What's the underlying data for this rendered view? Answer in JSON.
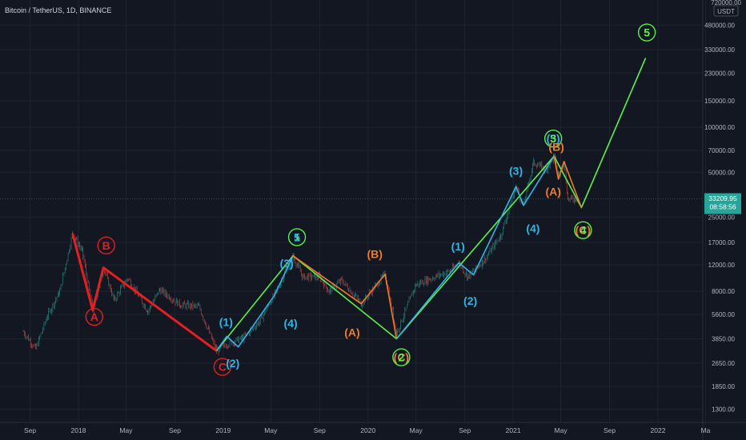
{
  "header": {
    "symbol_line": "Bitcoin / TetherUS, 1D, BINANCE"
  },
  "axis": {
    "top_label": "720000.00",
    "currency": "USDT",
    "price_badge": "33209.95",
    "countdown": "08:58:56"
  },
  "colors": {
    "background": "#131722",
    "grid": "#1f2330",
    "candle_up": "#26a69a",
    "candle_down": "#ef5350",
    "red": "#e32020",
    "green": "#5ef04a",
    "cyan": "#2fb5e8",
    "orange": "#f07a2a",
    "price_badge": "#26a69a"
  },
  "chart_data": {
    "type": "line",
    "symbol": "Bitcoin / TetherUS",
    "timeframe": "1D",
    "exchange": "BINANCE",
    "y_scale": "log",
    "ylim": [
      1000,
      720000
    ],
    "y_ticks": [
      "1300.00",
      "1850.00",
      "2650.00",
      "3850.00",
      "5600.00",
      "8000.00",
      "12000.00",
      "17000.00",
      "25000.00",
      "33209.95",
      "50000.00",
      "70000.00",
      "100000.00",
      "150000.00",
      "230000.00",
      "330000.00",
      "480000.00",
      "720000.00"
    ],
    "x_ticks": [
      "Sep",
      "2018",
      "May",
      "Sep",
      "2019",
      "May",
      "Sep",
      "2020",
      "May",
      "Sep",
      "2021",
      "May",
      "Sep",
      "2022",
      "Ma"
    ],
    "last_price": 33209.95,
    "price_path": [
      {
        "x": "2017-08-15",
        "y": 4300
      },
      {
        "x": "2017-09-15",
        "y": 3300
      },
      {
        "x": "2017-10-15",
        "y": 5500
      },
      {
        "x": "2017-11-15",
        "y": 8000
      },
      {
        "x": "2017-12-17",
        "y": 19500
      },
      {
        "x": "2018-01-10",
        "y": 15000
      },
      {
        "x": "2018-02-06",
        "y": 6000
      },
      {
        "x": "2018-03-05",
        "y": 11500
      },
      {
        "x": "2018-04-01",
        "y": 7000
      },
      {
        "x": "2018-05-05",
        "y": 9800
      },
      {
        "x": "2018-06-25",
        "y": 5900
      },
      {
        "x": "2018-07-25",
        "y": 8200
      },
      {
        "x": "2018-09-15",
        "y": 6500
      },
      {
        "x": "2018-11-01",
        "y": 6300
      },
      {
        "x": "2018-12-15",
        "y": 3200
      },
      {
        "x": "2019-01-15",
        "y": 3600
      },
      {
        "x": "2019-02-20",
        "y": 3900
      },
      {
        "x": "2019-04-02",
        "y": 5000
      },
      {
        "x": "2019-05-15",
        "y": 8000
      },
      {
        "x": "2019-06-26",
        "y": 13800
      },
      {
        "x": "2019-07-20",
        "y": 10000
      },
      {
        "x": "2019-09-01",
        "y": 10000
      },
      {
        "x": "2019-09-25",
        "y": 8000
      },
      {
        "x": "2019-10-26",
        "y": 9500
      },
      {
        "x": "2019-12-15",
        "y": 6600
      },
      {
        "x": "2020-02-13",
        "y": 10400
      },
      {
        "x": "2020-03-13",
        "y": 4200
      },
      {
        "x": "2020-04-30",
        "y": 8800
      },
      {
        "x": "2020-06-01",
        "y": 9600
      },
      {
        "x": "2020-07-27",
        "y": 11000
      },
      {
        "x": "2020-08-17",
        "y": 12400
      },
      {
        "x": "2020-09-08",
        "y": 10000
      },
      {
        "x": "2020-10-21",
        "y": 13000
      },
      {
        "x": "2020-12-01",
        "y": 19000
      },
      {
        "x": "2021-01-08",
        "y": 40000
      },
      {
        "x": "2021-01-27",
        "y": 30000
      },
      {
        "x": "2021-02-21",
        "y": 58000
      },
      {
        "x": "2021-03-25",
        "y": 52000
      },
      {
        "x": "2021-04-14",
        "y": 64000
      },
      {
        "x": "2021-04-25",
        "y": 47000
      },
      {
        "x": "2021-05-09",
        "y": 59000
      },
      {
        "x": "2021-05-19",
        "y": 33000
      },
      {
        "x": "2021-06-10",
        "y": 33209.95
      }
    ],
    "series": [
      {
        "name": "",
        "color": "red",
        "points": [
          {
            "x": "2017-12-17",
            "y": 19500
          },
          {
            "x": "2018-02-06",
            "y": 6000
          },
          {
            "x": "2018-03-05",
            "y": 11500
          },
          {
            "x": "2018-12-15",
            "y": 3200
          }
        ]
      },
      {
        "name": "",
        "color": "green",
        "points": [
          {
            "x": "2018-12-15",
            "y": 3200
          },
          {
            "x": "2019-06-26",
            "y": 13800
          },
          {
            "x": "2020-03-13",
            "y": 3850
          },
          {
            "x": "2021-04-14",
            "y": 64000
          },
          {
            "x": "2021-06-22",
            "y": 29000
          },
          {
            "x": "2021-12-01",
            "y": 290000
          }
        ]
      },
      {
        "name": "",
        "color": "cyan",
        "points": [
          {
            "x": "2018-12-15",
            "y": 3200
          },
          {
            "x": "2019-01-10",
            "y": 4000
          },
          {
            "x": "2019-02-08",
            "y": 3400
          },
          {
            "x": "2019-05-10",
            "y": 7500
          },
          {
            "x": "2019-06-26",
            "y": 13800
          }
        ]
      },
      {
        "name": "",
        "color": "orange",
        "points": [
          {
            "x": "2019-06-26",
            "y": 13800
          },
          {
            "x": "2019-12-15",
            "y": 6600
          },
          {
            "x": "2020-02-13",
            "y": 10400
          },
          {
            "x": "2020-03-13",
            "y": 3850
          }
        ]
      },
      {
        "name": "",
        "color": "cyan",
        "points": [
          {
            "x": "2020-03-13",
            "y": 3850
          },
          {
            "x": "2020-08-17",
            "y": 12400
          },
          {
            "x": "2020-09-23",
            "y": 10300
          },
          {
            "x": "2021-01-08",
            "y": 40000
          },
          {
            "x": "2021-01-27",
            "y": 30000
          },
          {
            "x": "2021-04-14",
            "y": 64000
          }
        ]
      },
      {
        "name": "",
        "color": "orange",
        "points": [
          {
            "x": "2021-04-14",
            "y": 64000
          },
          {
            "x": "2021-04-25",
            "y": 45000
          },
          {
            "x": "2021-05-09",
            "y": 59000
          },
          {
            "x": "2021-06-22",
            "y": 29000
          }
        ]
      }
    ],
    "annotations": [
      {
        "text": "A",
        "x": "2018-02-10",
        "y": 5400,
        "color": "red",
        "circled": true
      },
      {
        "text": "B",
        "x": "2018-03-12",
        "y": 16200,
        "color": "red",
        "circled": true
      },
      {
        "text": "C",
        "x": "2018-12-30",
        "y": 2500,
        "color": "red",
        "circled": true
      },
      {
        "text": "(1)",
        "x": "2019-01-08",
        "y": 5000,
        "color": "cyan",
        "circled": false
      },
      {
        "text": "(2)",
        "x": "2019-01-25",
        "y": 2650,
        "color": "cyan",
        "circled": false
      },
      {
        "text": "(3)",
        "x": "2019-06-10",
        "y": 12300,
        "color": "cyan",
        "circled": false
      },
      {
        "text": "(4)",
        "x": "2019-06-20",
        "y": 4900,
        "color": "cyan",
        "circled": false
      },
      {
        "text": "1",
        "x": "2019-07-06",
        "y": 18400,
        "color": "green",
        "circled": true
      },
      {
        "text": "5",
        "x": "2019-07-06",
        "y": 18400,
        "color": "cyan",
        "circled": false
      },
      {
        "text": "(A)",
        "x": "2019-11-22",
        "y": 4250,
        "color": "orange",
        "circled": false
      },
      {
        "text": "(B)",
        "x": "2020-01-18",
        "y": 14200,
        "color": "orange",
        "circled": false
      },
      {
        "text": "(C)",
        "x": "2020-03-25",
        "y": 2900,
        "color": "orange",
        "circled": false
      },
      {
        "text": "2",
        "x": "2020-03-25",
        "y": 2900,
        "color": "green",
        "circled": true
      },
      {
        "text": "(1)",
        "x": "2020-08-15",
        "y": 16000,
        "color": "cyan",
        "circled": false
      },
      {
        "text": "(2)",
        "x": "2020-09-15",
        "y": 6900,
        "color": "cyan",
        "circled": false
      },
      {
        "text": "(3)",
        "x": "2021-01-08",
        "y": 51000,
        "color": "cyan",
        "circled": false
      },
      {
        "text": "(4)",
        "x": "2021-02-20",
        "y": 21000,
        "color": "cyan",
        "circled": false
      },
      {
        "text": "(5)",
        "x": "2021-04-12",
        "y": 84000,
        "color": "cyan",
        "circled": false
      },
      {
        "text": "3",
        "x": "2021-04-12",
        "y": 84000,
        "color": "green",
        "circled": true
      },
      {
        "text": "(B)",
        "x": "2021-04-20",
        "y": 74000,
        "color": "orange",
        "circled": false
      },
      {
        "text": "(A)",
        "x": "2021-04-12",
        "y": 37000,
        "color": "orange",
        "circled": false
      },
      {
        "text": "(C)",
        "x": "2021-06-26",
        "y": 20500,
        "color": "orange",
        "circled": false
      },
      {
        "text": "4",
        "x": "2021-06-26",
        "y": 20500,
        "color": "green",
        "circled": true
      },
      {
        "text": "5",
        "x": "2021-12-04",
        "y": 430000,
        "color": "green",
        "circled": true
      }
    ]
  }
}
